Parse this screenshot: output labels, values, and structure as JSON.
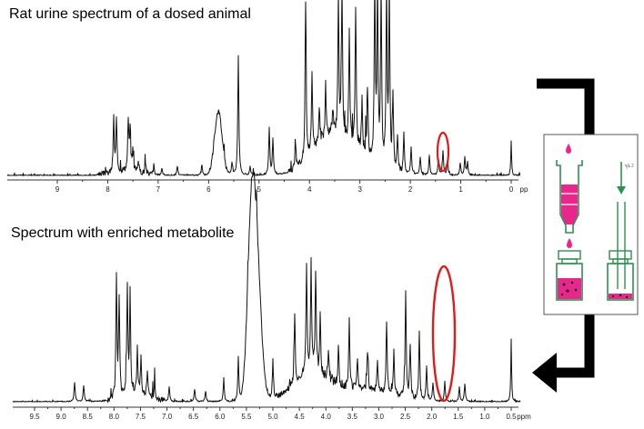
{
  "titles": {
    "top": "Rat urine spectrum of a dosed animal",
    "bottom": "Spectrum with enriched metabolite"
  },
  "top_axis": {
    "ticks": [
      "9",
      "8",
      "7",
      "6",
      "5",
      "4",
      "3",
      "2",
      "1",
      "0"
    ],
    "unit": "pp"
  },
  "bottom_axis": {
    "ticks": [
      "9.5",
      "9.0",
      "8.5",
      "8.0",
      "7.5",
      "7.0",
      "6.5",
      "6.0",
      "5.5",
      "5.0",
      "4.5",
      "4.0",
      "3.5",
      "3.0",
      "2.5",
      "2.0",
      "1.5",
      "1.0",
      "0.5"
    ],
    "unit": "ppm"
  },
  "colors": {
    "spectrum": "#111111",
    "highlight": "#e01b1b",
    "flow_arrow": "#000000",
    "cartridge": "#2f8f4e",
    "sample": "#e8278c"
  },
  "icons": {
    "flow": "bracket-arrow-icon",
    "prep": "spe-cartridge-icon"
  }
}
